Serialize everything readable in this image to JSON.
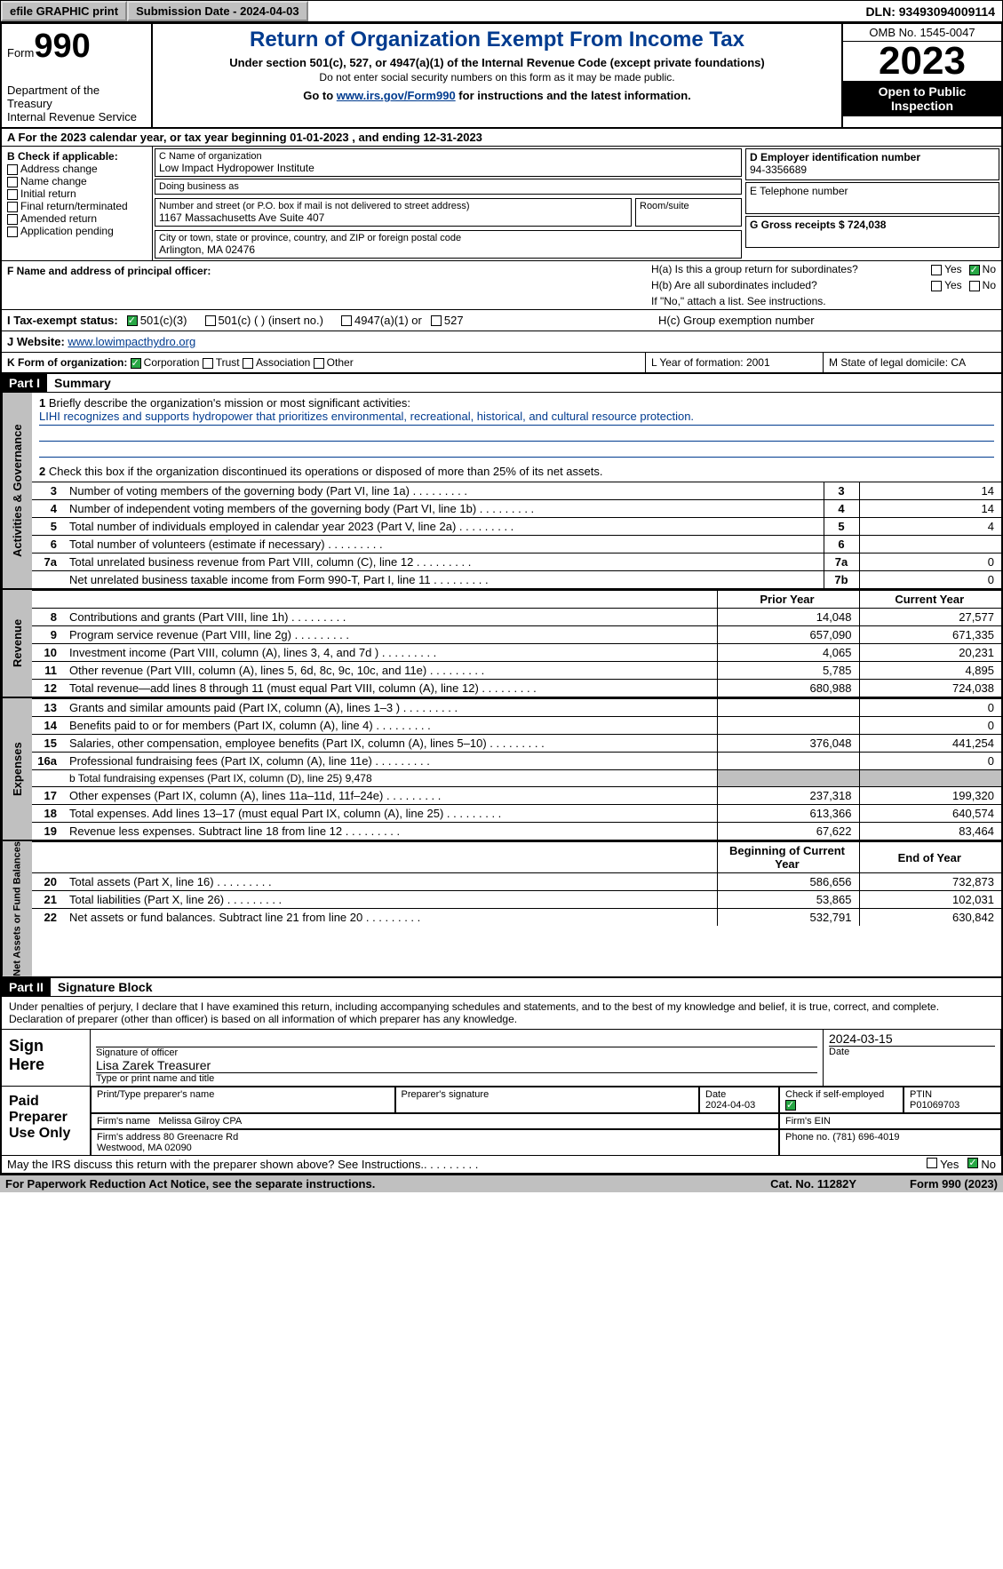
{
  "topbar": {
    "efile": "efile GRAPHIC print",
    "submission": "Submission Date - 2024-04-03",
    "dln": "DLN: 93493094009114"
  },
  "header": {
    "form_word": "Form",
    "form_num": "990",
    "title": "Return of Organization Exempt From Income Tax",
    "subtitle": "Under section 501(c), 527, or 4947(a)(1) of the Internal Revenue Code (except private foundations)",
    "subtitle2": "Do not enter social security numbers on this form as it may be made public.",
    "goto_pre": "Go to ",
    "goto_link": "www.irs.gov/Form990",
    "goto_post": " for instructions and the latest information.",
    "dept": "Department of the Treasury\nInternal Revenue Service",
    "omb": "OMB No. 1545-0047",
    "year": "2023",
    "open_pub": "Open to Public Inspection"
  },
  "sectionA": "A For the 2023 calendar year, or tax year beginning 01-01-2023   , and ending 12-31-2023",
  "colB": {
    "hdr": "B Check if applicable:",
    "items": [
      "Address change",
      "Name change",
      "Initial return",
      "Final return/terminated",
      "Amended return",
      "Application pending"
    ]
  },
  "colC": {
    "name_lbl": "C Name of organization",
    "name": "Low Impact Hydropower Institute",
    "dba_lbl": "Doing business as",
    "street_lbl": "Number and street (or P.O. box if mail is not delivered to street address)",
    "street": "1167 Massachusetts Ave Suite 407",
    "room_lbl": "Room/suite",
    "city_lbl": "City or town, state or province, country, and ZIP or foreign postal code",
    "city": "Arlington, MA   02476"
  },
  "colD": {
    "ein_lbl": "D Employer identification number",
    "ein": "94-3356689",
    "tel_lbl": "E Telephone number",
    "gross_lbl": "G Gross receipts $ 724,038"
  },
  "rowF": {
    "label": "F  Name and address of principal officer:",
    "ha": "H(a)  Is this a group return for subordinates?",
    "hb": "H(b)  Are all subordinates included?",
    "hno": "If \"No,\" attach a list. See instructions.",
    "hc": "H(c)  Group exemption number"
  },
  "tax": {
    "i_lbl": "I    Tax-exempt status:",
    "c3": "501(c)(3)",
    "c": "501(c) (  ) (insert no.)",
    "a47": "4947(a)(1) or",
    "s527": "527",
    "j_lbl": "J    Website:",
    "website": "www.lowimpacthydro.org"
  },
  "rowK": {
    "k": "K Form of organization:",
    "corp": "Corporation",
    "trust": "Trust",
    "assoc": "Association",
    "other": "Other",
    "l": "L Year of formation: 2001",
    "m": "M State of legal domicile: CA"
  },
  "part1": {
    "hdr": "Part I",
    "title": "Summary",
    "line1": "Briefly describe the organization's mission or most significant activities:",
    "mission": "LIHI recognizes and supports hydropower that prioritizes environmental, recreational, historical, and cultural resource protection.",
    "line2": "Check this box        if the organization discontinued its operations or disposed of more than 25% of its net assets.",
    "sideA": "Activities & Governance",
    "sideB": "Revenue",
    "sideC": "Expenses",
    "sideD": "Net Assets or Fund Balances",
    "rows_governance": [
      {
        "n": "3",
        "t": "Number of voting members of the governing body (Part VI, line 1a)",
        "b": "3",
        "v": "14"
      },
      {
        "n": "4",
        "t": "Number of independent voting members of the governing body (Part VI, line 1b)",
        "b": "4",
        "v": "14"
      },
      {
        "n": "5",
        "t": "Total number of individuals employed in calendar year 2023 (Part V, line 2a)",
        "b": "5",
        "v": "4"
      },
      {
        "n": "6",
        "t": "Total number of volunteers (estimate if necessary)",
        "b": "6",
        "v": ""
      },
      {
        "n": "7a",
        "t": "Total unrelated business revenue from Part VIII, column (C), line 12",
        "b": "7a",
        "v": "0"
      },
      {
        "n": "",
        "t": "Net unrelated business taxable income from Form 990-T, Part I, line 11",
        "b": "7b",
        "v": "0"
      }
    ],
    "hdr_prior": "Prior Year",
    "hdr_current": "Current Year",
    "rows_revenue": [
      {
        "n": "8",
        "t": "Contributions and grants (Part VIII, line 1h)",
        "p": "14,048",
        "c": "27,577"
      },
      {
        "n": "9",
        "t": "Program service revenue (Part VIII, line 2g)",
        "p": "657,090",
        "c": "671,335"
      },
      {
        "n": "10",
        "t": "Investment income (Part VIII, column (A), lines 3, 4, and 7d )",
        "p": "4,065",
        "c": "20,231"
      },
      {
        "n": "11",
        "t": "Other revenue (Part VIII, column (A), lines 5, 6d, 8c, 9c, 10c, and 11e)",
        "p": "5,785",
        "c": "4,895"
      },
      {
        "n": "12",
        "t": "Total revenue—add lines 8 through 11 (must equal Part VIII, column (A), line 12)",
        "p": "680,988",
        "c": "724,038"
      }
    ],
    "rows_expenses": [
      {
        "n": "13",
        "t": "Grants and similar amounts paid (Part IX, column (A), lines 1–3 )",
        "p": "",
        "c": "0"
      },
      {
        "n": "14",
        "t": "Benefits paid to or for members (Part IX, column (A), line 4)",
        "p": "",
        "c": "0"
      },
      {
        "n": "15",
        "t": "Salaries, other compensation, employee benefits (Part IX, column (A), lines 5–10)",
        "p": "376,048",
        "c": "441,254"
      },
      {
        "n": "16a",
        "t": "Professional fundraising fees (Part IX, column (A), line 11e)",
        "p": "",
        "c": "0"
      }
    ],
    "line16b": "b   Total fundraising expenses (Part IX, column (D), line 25) 9,478",
    "rows_expenses2": [
      {
        "n": "17",
        "t": "Other expenses (Part IX, column (A), lines 11a–11d, 11f–24e)",
        "p": "237,318",
        "c": "199,320"
      },
      {
        "n": "18",
        "t": "Total expenses. Add lines 13–17 (must equal Part IX, column (A), line 25)",
        "p": "613,366",
        "c": "640,574"
      },
      {
        "n": "19",
        "t": "Revenue less expenses. Subtract line 18 from line 12",
        "p": "67,622",
        "c": "83,464"
      }
    ],
    "hdr_begin": "Beginning of Current Year",
    "hdr_end": "End of Year",
    "rows_net": [
      {
        "n": "20",
        "t": "Total assets (Part X, line 16)",
        "p": "586,656",
        "c": "732,873"
      },
      {
        "n": "21",
        "t": "Total liabilities (Part X, line 26)",
        "p": "53,865",
        "c": "102,031"
      },
      {
        "n": "22",
        "t": "Net assets or fund balances. Subtract line 21 from line 20",
        "p": "532,791",
        "c": "630,842"
      }
    ]
  },
  "part2": {
    "hdr": "Part II",
    "title": "Signature Block",
    "decl": "Under penalties of perjury, I declare that I have examined this return, including accompanying schedules and statements, and to the best of my knowledge and belief, it is true, correct, and complete. Declaration of preparer (other than officer) is based on all information of which preparer has any knowledge.",
    "sign_here": "Sign Here",
    "sig_officer": "Signature of officer",
    "officer": "Lisa Zarek  Treasurer",
    "type_name": "Type or print name and title",
    "date_lbl": "Date",
    "date1": "2024-03-15",
    "paid_prep": "Paid Preparer Use Only",
    "prep_name_lbl": "Print/Type preparer's name",
    "prep_sig_lbl": "Preparer's signature",
    "prep_date_lbl": "Date",
    "prep_date": "2024-04-03",
    "check_self": "Check         if self-employed",
    "ptin_lbl": "PTIN",
    "ptin": "P01069703",
    "firm_name_lbl": "Firm's name",
    "firm_name": "Melissa Gilroy CPA",
    "firm_ein_lbl": "Firm's EIN",
    "firm_addr_lbl": "Firm's address",
    "firm_addr": "80 Greenacre Rd\nWestwood, MA   02090",
    "phone_lbl": "Phone no. (781) 696-4019"
  },
  "footer": {
    "discuss": "May the IRS discuss this return with the preparer shown above? See Instructions.",
    "yes": "Yes",
    "no": "No",
    "pra": "For Paperwork Reduction Act Notice, see the separate instructions.",
    "cat": "Cat. No. 11282Y",
    "form": "Form 990 (2023)"
  }
}
